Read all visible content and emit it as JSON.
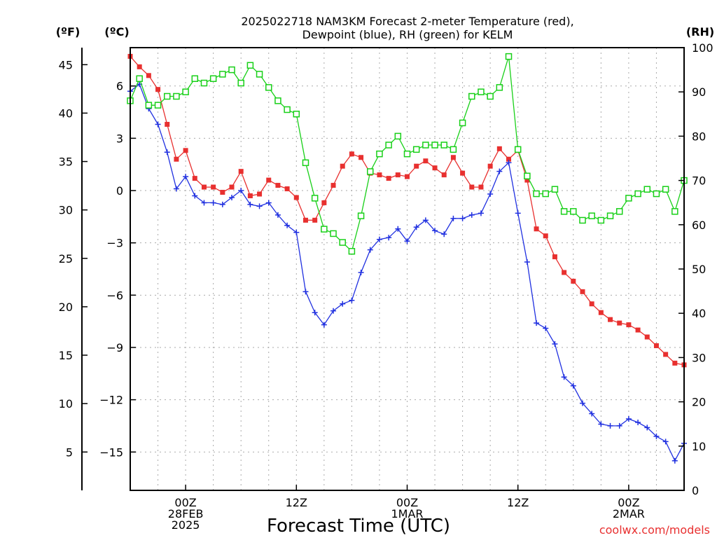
{
  "chart_data": {
    "type": "line",
    "title_line1": "2025022718 NAM3KM Forecast 2-meter Temperature (red),",
    "title_line2": "Dewpoint (blue), RH (green) for KELM",
    "xlabel": "Forecast Time (UTC)",
    "y_left_outer_label": "(ºF)",
    "y_left_inner_label": "(ºC)",
    "y_right_label": "(RH)",
    "credit": "coolwx.com/models",
    "x_range_hours": [
      -6,
      54
    ],
    "x_ticks": [
      {
        "hour": 0,
        "labels": [
          "00Z",
          "28FEB",
          "2025"
        ]
      },
      {
        "hour": 12,
        "labels": [
          "12Z"
        ]
      },
      {
        "hour": 24,
        "labels": [
          "00Z",
          "1MAR"
        ]
      },
      {
        "hour": 36,
        "labels": [
          "12Z"
        ]
      },
      {
        "hour": 48,
        "labels": [
          "00Z",
          "2MAR"
        ]
      }
    ],
    "y_celsius_range": [
      -17.2,
      8.2
    ],
    "y_celsius_ticks": [
      "6",
      "3",
      "0",
      "−3",
      "−6",
      "−9",
      "−12",
      "−15"
    ],
    "y_fahrenheit_ticks": [
      "45",
      "40",
      "35",
      "30",
      "25",
      "20",
      "15",
      "10",
      "5"
    ],
    "y_rh_range": [
      0,
      100
    ],
    "y_rh_ticks": [
      "100",
      "90",
      "80",
      "70",
      "60",
      "50",
      "40",
      "30",
      "20",
      "10",
      "0"
    ],
    "grid": true,
    "series": [
      {
        "name": "Temperature",
        "color": "#e8302f",
        "marker": "filled-square",
        "axis": "celsius",
        "values": [
          7.7,
          7.1,
          6.6,
          5.8,
          3.8,
          1.8,
          2.3,
          0.7,
          0.2,
          0.2,
          -0.1,
          0.2,
          1.1,
          -0.3,
          -0.2,
          0.6,
          0.3,
          0.1,
          -0.4,
          -1.7,
          -1.7,
          -0.7,
          0.3,
          1.4,
          2.1,
          1.9,
          1.0,
          0.9,
          0.7,
          0.9,
          0.8,
          1.4,
          1.7,
          1.3,
          0.9,
          1.9,
          1.0,
          0.2,
          0.2,
          1.4,
          2.4,
          1.8,
          2.3,
          0.6,
          -2.2,
          -2.6,
          -3.8,
          -4.7,
          -5.2,
          -5.8,
          -6.5,
          -7.0,
          -7.4,
          -7.6,
          -7.7,
          -8.0,
          -8.4,
          -8.9,
          -9.4,
          -9.9,
          -10.0
        ]
      },
      {
        "name": "Dewpoint",
        "color": "#2030e0",
        "marker": "plus",
        "axis": "celsius",
        "values": [
          5.7,
          6.1,
          4.7,
          3.8,
          2.2,
          0.1,
          0.8,
          -0.3,
          -0.7,
          -0.7,
          -0.8,
          -0.4,
          0.0,
          -0.8,
          -0.9,
          -0.7,
          -1.4,
          -2.0,
          -2.4,
          -5.8,
          -7.0,
          -7.7,
          -6.9,
          -6.5,
          -6.3,
          -4.7,
          -3.4,
          -2.8,
          -2.7,
          -2.2,
          -2.9,
          -2.1,
          -1.7,
          -2.3,
          -2.5,
          -1.6,
          -1.6,
          -1.4,
          -1.3,
          -0.2,
          1.1,
          1.6,
          -1.3,
          -4.1,
          -7.6,
          -7.9,
          -8.8,
          -10.7,
          -11.2,
          -12.2,
          -12.8,
          -13.4,
          -13.5,
          -13.5,
          -13.1,
          -13.3,
          -13.6,
          -14.1,
          -14.4,
          -15.5,
          -14.5
        ]
      },
      {
        "name": "RH",
        "color": "#18d018",
        "marker": "open-square",
        "axis": "rh",
        "values": [
          88,
          93,
          87,
          87,
          89,
          89,
          90,
          93,
          92,
          93,
          94,
          95,
          92,
          96,
          94,
          91,
          88,
          86,
          85,
          74,
          66,
          59,
          58,
          56,
          54,
          62,
          72,
          76,
          78,
          80,
          76,
          77,
          78,
          78,
          78,
          77,
          83,
          89,
          90,
          89,
          91,
          98,
          77,
          71,
          67,
          67,
          68,
          63,
          63,
          61,
          62,
          61,
          62,
          63,
          66,
          67,
          68,
          67,
          68,
          63,
          70
        ]
      }
    ]
  }
}
